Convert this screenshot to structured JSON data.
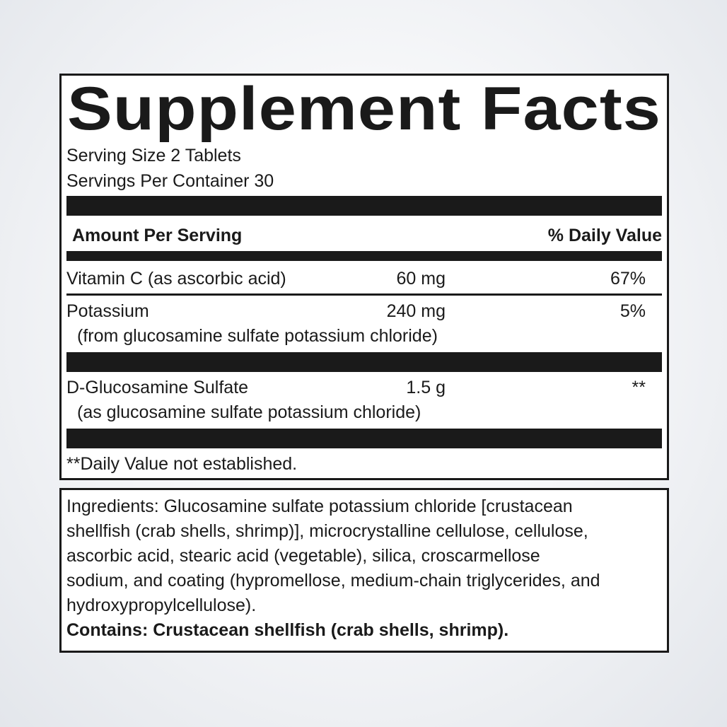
{
  "facts": {
    "title": "Supplement Facts",
    "serving_size": "Serving Size 2 Tablets",
    "servings_per_container": "Servings Per Container 30",
    "header_amount": "Amount Per Serving",
    "header_dv": "% Daily Value",
    "rows": [
      {
        "name": "Vitamin C (as ascorbic acid)",
        "amount": "60 mg",
        "dv": "67%"
      },
      {
        "name": "Potassium",
        "sub": "(from glucosamine sulfate potassium chloride)",
        "amount": "240 mg",
        "dv": "5%"
      },
      {
        "name": "D-Glucosamine Sulfate",
        "sub": "(as glucosamine sulfate potassium chloride)",
        "amount": "1.5 g",
        "dv": "**"
      }
    ],
    "footnote": "**Daily Value not established."
  },
  "ingredients": {
    "lines": [
      "Ingredients: Glucosamine sulfate potassium chloride [crustacean",
      "shellfish (crab shells, shrimp)], microcrystalline cellulose, cellulose,",
      "ascorbic acid, stearic acid (vegetable), silica, croscarmellose",
      "sodium, and coating (hypromellose, medium-chain triglycerides, and",
      "hydroxypropylcellulose)."
    ],
    "contains": "Contains: Crustacean shellfish (crab shells, shrimp)."
  }
}
